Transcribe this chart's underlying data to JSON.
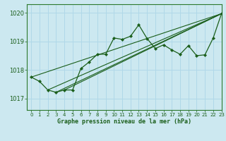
{
  "title": "Graphe pression niveau de la mer (hPa)",
  "bg_color": "#cce8f0",
  "grid_color": "#b0d8e8",
  "line_color": "#1a5e1a",
  "xlim": [
    -0.5,
    23
  ],
  "ylim": [
    1016.6,
    1020.3
  ],
  "yticks": [
    1017,
    1018,
    1019,
    1020
  ],
  "xticks": [
    0,
    1,
    2,
    3,
    4,
    5,
    6,
    7,
    8,
    9,
    10,
    11,
    12,
    13,
    14,
    15,
    16,
    17,
    18,
    19,
    20,
    21,
    22,
    23
  ],
  "series1": [
    1017.75,
    1017.6,
    1017.3,
    1017.22,
    1017.3,
    1017.3,
    1018.05,
    1018.28,
    1018.55,
    1018.55,
    1019.12,
    1019.07,
    1019.18,
    1019.58,
    1019.1,
    1018.75,
    1018.88,
    1018.7,
    1018.55,
    1018.85,
    1018.5,
    1018.53,
    1019.12,
    1019.97
  ],
  "trendlines": [
    {
      "x": [
        0,
        23
      ],
      "y": [
        1017.75,
        1019.97
      ]
    },
    {
      "x": [
        2,
        23
      ],
      "y": [
        1017.3,
        1019.97
      ]
    },
    {
      "x": [
        3,
        23
      ],
      "y": [
        1017.22,
        1019.97
      ]
    },
    {
      "x": [
        4,
        23
      ],
      "y": [
        1017.3,
        1019.97
      ]
    }
  ]
}
